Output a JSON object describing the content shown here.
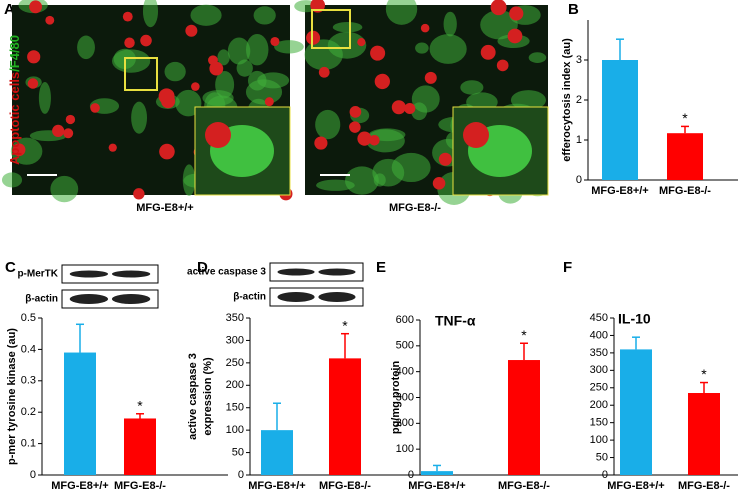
{
  "panel_a": {
    "label": "A",
    "ylabel_red": "Apoptotic cells",
    "ylabel_green": "/F4/80",
    "captions": [
      "MFG-E8+/+",
      "MFG-E8-/-"
    ]
  },
  "chart_data": [
    {
      "type": "bar",
      "panel": "B",
      "ylabel": "efferocytosis index (au)",
      "categories": [
        "MFG-E8+/+",
        "MFG-E8-/-"
      ],
      "values": [
        3.0,
        1.17
      ],
      "errors": [
        0.52,
        0.17
      ],
      "colors": [
        "#19aee8",
        "#ff0000"
      ],
      "ylim": [
        0,
        4
      ],
      "yticks": [
        0,
        1,
        2,
        3
      ],
      "annotation": "*"
    },
    {
      "type": "bar",
      "panel": "C",
      "ylabel": "p-mer tyrosine kinase (au)",
      "blot_labels": [
        "p-MerTK",
        "β-actin"
      ],
      "categories": [
        "MFG-E8+/+",
        "MFG-E8-/-"
      ],
      "values": [
        0.39,
        0.18
      ],
      "errors": [
        0.09,
        0.015
      ],
      "colors": [
        "#19aee8",
        "#ff0000"
      ],
      "ylim": [
        0,
        0.5
      ],
      "yticks": [
        0,
        0.1,
        0.2,
        0.3,
        0.4,
        0.5
      ],
      "annotation": "*"
    },
    {
      "type": "bar",
      "panel": "D",
      "ylabel": [
        "active caspase 3",
        "expression (%)"
      ],
      "blot_labels": [
        "active caspase 3",
        "β-actin"
      ],
      "categories": [
        "MFG-E8+/+",
        "MFG-E8-/-"
      ],
      "values": [
        100,
        260
      ],
      "errors": [
        60,
        55
      ],
      "colors": [
        "#19aee8",
        "#ff0000"
      ],
      "ylim": [
        0,
        350
      ],
      "yticks": [
        0,
        50,
        100,
        150,
        200,
        250,
        300,
        350
      ],
      "annotation": "*"
    },
    {
      "type": "bar",
      "panel": "E",
      "ylabel": "pg/mg protein",
      "inset_title": "TNF-α",
      "categories": [
        "MFG-E8+/+",
        "MFG-E8-/-"
      ],
      "values": [
        15,
        445
      ],
      "errors": [
        22,
        65
      ],
      "colors": [
        "#19aee8",
        "#ff0000"
      ],
      "ylim": [
        0,
        600
      ],
      "yticks": [
        0,
        100,
        200,
        300,
        400,
        500,
        600
      ],
      "annotation": "*"
    },
    {
      "type": "bar",
      "panel": "F",
      "inset_title": "IL-10",
      "categories": [
        "MFG-E8+/+",
        "MFG-E8-/-"
      ],
      "values": [
        360,
        235
      ],
      "errors": [
        35,
        30
      ],
      "colors": [
        "#19aee8",
        "#ff0000"
      ],
      "ylim": [
        0,
        450
      ],
      "yticks": [
        0,
        50,
        100,
        150,
        200,
        250,
        300,
        350,
        400,
        450
      ],
      "annotation": "*"
    }
  ]
}
